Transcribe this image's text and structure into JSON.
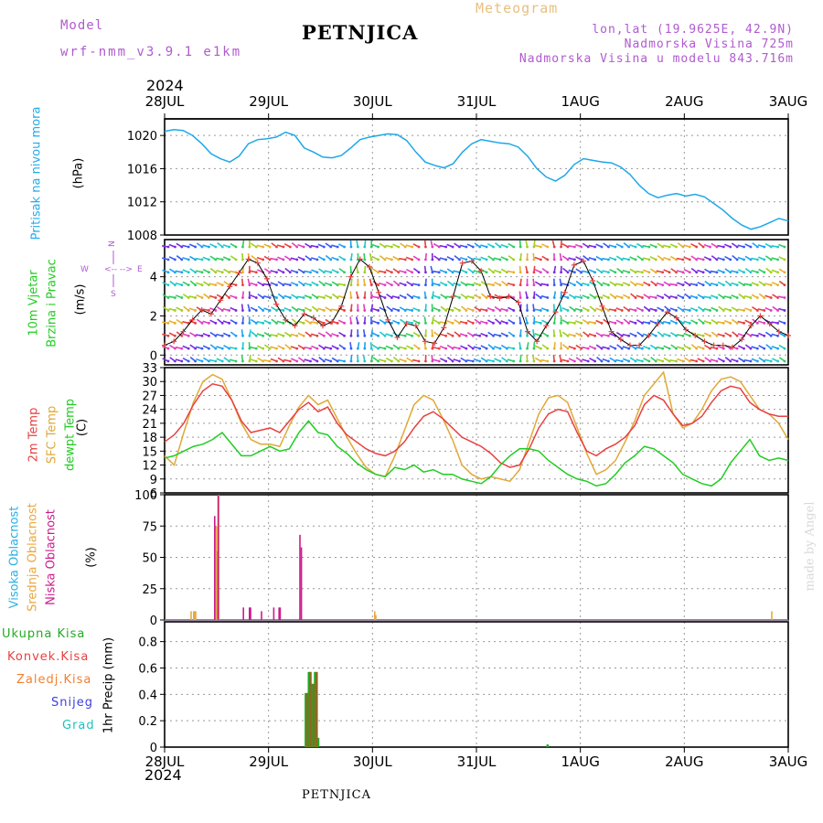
{
  "header": {
    "model_label": "Model",
    "model_name": "wrf-nmm_v3.9.1 e1km",
    "station": "PETNJICA",
    "meteogram": "Meteogram",
    "lonlat": "lon,lat (19.9625E, 42.9N)",
    "elevation": "Nadmorska Visina 725m",
    "model_elevation": "Nadmorska Visina u modelu 843.716m",
    "year_top": "2024",
    "year_bottom": "2024",
    "footer_station": "PETNJICA",
    "watermark": "made by Angel"
  },
  "colors": {
    "pressure": "#1ea7e8",
    "temp2m": "#e84040",
    "sfc_temp": "#e0a838",
    "dewpt": "#22cc22",
    "high_cloud": "#2ab0e0",
    "mid_cloud": "#e8a840",
    "low_cloud": "#cc1c8c",
    "total_precip": "#22aa22",
    "conv_precip": "#e84040",
    "frz_precip": "#f08030",
    "snow": "#4040e0",
    "hail": "#20c0c0"
  },
  "panel_labels": {
    "pressure": [
      "Pritisak na nivou mora",
      "(hPa)"
    ],
    "wind": [
      "10m Vjetar",
      "Brzina i Pravac",
      "(m/s)"
    ],
    "compass": "N\n|\nW <-- --> E\n|\nS",
    "temp": [
      "2m Temp",
      "SFC Temp",
      "dewpt Temp",
      "(C)"
    ],
    "cloud": [
      "Visoka Oblacnost",
      "Srednja Oblacnost",
      "Niska Oblacnost",
      "(%)"
    ],
    "precip_unit": "1hr Precip (mm)",
    "precip_legend": [
      "Ukupna Kisa",
      "Konvek.Kisa",
      "Zaledj.Kisa",
      "Snijeg",
      "Grad"
    ]
  },
  "chart_data": [
    {
      "type": "line",
      "name": "pressure",
      "x_labels": [
        "28JUL",
        "29JUL",
        "30JUL",
        "31JUL",
        "1AUG",
        "2AUG",
        "3AUG"
      ],
      "ylim": [
        1008,
        1022
      ],
      "yticks": [
        1008,
        1012,
        1016,
        1020
      ],
      "series": [
        {
          "values": [
            1020.5,
            1020.7,
            1020.6,
            1020.0,
            1019.0,
            1017.8,
            1017.2,
            1016.8,
            1017.5,
            1019.0,
            1019.5,
            1019.6,
            1019.8,
            1020.4,
            1020.0,
            1018.5,
            1018.0,
            1017.4,
            1017.3,
            1017.6,
            1018.5,
            1019.5,
            1019.8,
            1020.0,
            1020.2,
            1020.1,
            1019.4,
            1018.0,
            1016.8,
            1016.4,
            1016.1,
            1016.6,
            1018.0,
            1019.0,
            1019.5,
            1019.3,
            1019.1,
            1019.0,
            1018.6,
            1017.5,
            1016.0,
            1015.0,
            1014.5,
            1015.2,
            1016.5,
            1017.2,
            1017.0,
            1016.8,
            1016.7,
            1016.2,
            1015.3,
            1014.0,
            1013.0,
            1012.5,
            1012.8,
            1013.0,
            1012.7,
            1012.9,
            1012.6,
            1011.8,
            1011.0,
            1010.0,
            1009.2,
            1008.7,
            1009.0,
            1009.5,
            1010.0,
            1009.7
          ]
        }
      ]
    },
    {
      "type": "line",
      "name": "wind_speed",
      "ylim": [
        -0.5,
        5.9
      ],
      "yticks": [
        0,
        2,
        4
      ],
      "series": [
        {
          "values": [
            0.5,
            0.7,
            1.2,
            1.8,
            2.3,
            2.1,
            2.8,
            3.5,
            4.2,
            4.9,
            4.7,
            3.9,
            2.6,
            1.8,
            1.5,
            2.1,
            1.9,
            1.5,
            1.7,
            2.5,
            4.0,
            4.9,
            4.5,
            3.2,
            1.8,
            0.9,
            1.6,
            1.5,
            0.7,
            0.6,
            1.4,
            3.0,
            4.7,
            4.8,
            4.3,
            3.0,
            2.9,
            3.0,
            2.7,
            1.2,
            0.7,
            1.5,
            2.2,
            3.2,
            4.6,
            4.8,
            3.8,
            2.5,
            1.2,
            0.8,
            0.5,
            0.5,
            1.0,
            1.6,
            2.2,
            1.9,
            1.3,
            1.0,
            0.7,
            0.5,
            0.5,
            0.4,
            0.8,
            1.5,
            2.0,
            1.6,
            1.2,
            1.0
          ]
        }
      ]
    },
    {
      "type": "line",
      "name": "temperature",
      "ylim": [
        6,
        33
      ],
      "yticks": [
        6,
        9,
        12,
        15,
        18,
        21,
        24,
        27,
        30,
        33
      ],
      "series": [
        {
          "name": "2m Temp",
          "values": [
            17,
            18.5,
            21,
            25,
            28,
            29.5,
            29,
            26,
            21.5,
            19,
            19.5,
            20,
            19,
            21.5,
            24,
            25.5,
            23.5,
            24.5,
            21,
            18.5,
            17,
            15.5,
            14.5,
            14,
            15,
            17,
            20,
            22.5,
            23.5,
            22,
            20,
            18,
            17,
            16,
            14.5,
            12.5,
            11.5,
            12,
            15.5,
            20,
            23,
            24,
            23.5,
            19,
            15,
            14,
            15.5,
            16.5,
            18,
            20.5,
            25,
            27,
            26,
            23,
            20.5,
            21,
            22.5,
            25.5,
            28,
            29,
            28.5,
            25.5,
            24,
            23,
            22.5,
            22.5
          ]
        },
        {
          "name": "SFC Temp",
          "values": [
            14,
            12,
            19,
            25.5,
            30,
            31.5,
            30.5,
            26,
            21,
            17.5,
            16.5,
            16.5,
            16,
            20.5,
            24.5,
            27,
            25,
            26,
            22,
            18,
            14.5,
            11.5,
            10,
            9.5,
            14,
            19.5,
            25,
            27,
            26,
            22,
            17.5,
            12,
            10,
            9,
            9.5,
            9,
            8.5,
            11,
            17,
            23,
            26.5,
            27,
            25.5,
            20,
            14.5,
            10,
            11,
            13,
            17,
            21.5,
            27,
            29.5,
            32,
            23,
            20,
            21,
            24,
            28,
            30.5,
            31,
            30,
            27,
            24,
            23,
            21,
            17.5
          ]
        },
        {
          "name": "dewpt Temp",
          "values": [
            13.5,
            14,
            15,
            16,
            16.5,
            17.5,
            19,
            16.5,
            14,
            14,
            15,
            16,
            15,
            15.5,
            19,
            21.5,
            19,
            18.5,
            16,
            14.5,
            12.5,
            11,
            10,
            9.5,
            11.5,
            11,
            12,
            10.5,
            11,
            10,
            10,
            9,
            8.5,
            8,
            9.5,
            12,
            14,
            15.5,
            15.5,
            15,
            13,
            11.5,
            10,
            9,
            8.5,
            7.5,
            8,
            10,
            12.5,
            14,
            16,
            15.5,
            14,
            12.5,
            10,
            9,
            8,
            7.5,
            9,
            12.5,
            15,
            17.5,
            14,
            13,
            13.5,
            13
          ]
        }
      ]
    },
    {
      "type": "bar",
      "name": "cloud_cover",
      "ylim": [
        0,
        100
      ],
      "yticks": [
        0,
        25,
        50,
        75,
        100
      ],
      "series": [
        {
          "name": "Visoka Oblacnost",
          "bars": [
            [
              13.85,
              75
            ],
            [
              13.95,
              10
            ],
            [
              14.1,
              10
            ],
            [
              14.3,
              55
            ]
          ]
        },
        {
          "name": "Srednja Oblacnost",
          "bars": [
            [
              7.05,
              7
            ],
            [
              7.75,
              7
            ],
            [
              8.05,
              7
            ],
            [
              8.3,
              7
            ],
            [
              13.75,
              72
            ],
            [
              13.95,
              75
            ],
            [
              14.6,
              100
            ],
            [
              57.25,
              7
            ],
            [
              57.55,
              4
            ]
          ]
        },
        {
          "name": "Niska Oblacnost",
          "bars": [
            [
              13.5,
              83
            ],
            [
              14.45,
              100
            ],
            [
              21.35,
              10
            ],
            [
              23.0,
              10
            ],
            [
              23.3,
              10
            ],
            [
              26.3,
              7
            ],
            [
              29.65,
              10
            ],
            [
              31.1,
              10
            ],
            [
              31.4,
              10
            ],
            [
              36.8,
              68
            ],
            [
              37.2,
              58
            ]
          ]
        }
      ]
    },
    {
      "type": "bar",
      "name": "precipitation",
      "ylim": [
        0,
        0.95
      ],
      "yticks": [
        0,
        0.2,
        0.4,
        0.6,
        0.8
      ],
      "series": [
        {
          "name": "Ukupna Kisa",
          "bars": [
            [
              13.55,
              0.41
            ],
            [
              13.85,
              0.57
            ],
            [
              14.15,
              0.48
            ],
            [
              14.45,
              0.57
            ],
            [
              14.75,
              0.07
            ],
            [
              36.95,
              0.02
            ]
          ]
        },
        {
          "name": "Konvek.Kisa",
          "bars": [
            [
              13.7,
              0.41
            ],
            [
              14.0,
              0.57
            ],
            [
              14.3,
              0.48
            ],
            [
              14.6,
              0.57
            ]
          ]
        }
      ]
    }
  ]
}
